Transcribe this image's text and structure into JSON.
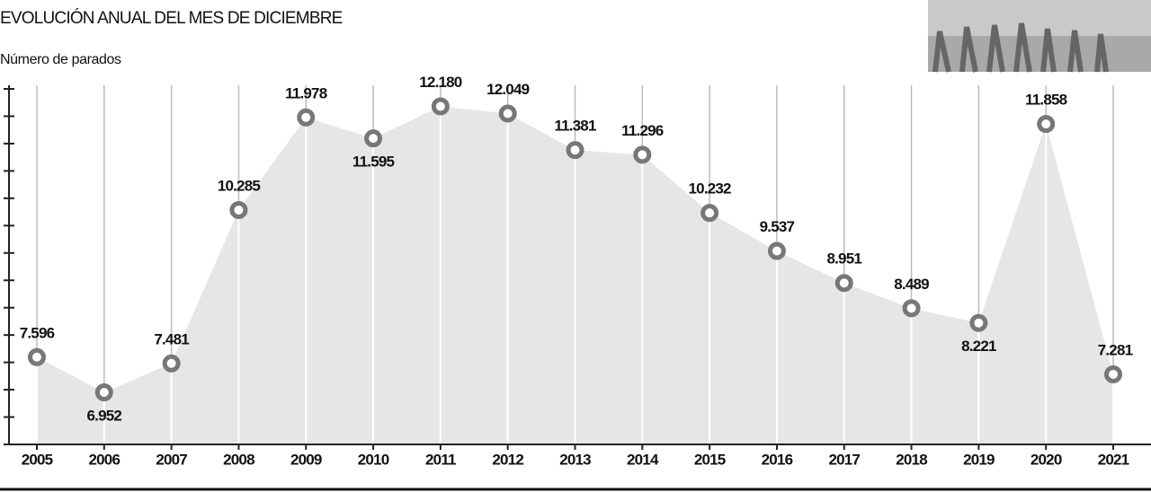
{
  "chart_data": {
    "type": "area",
    "title": "EVOLUCIÓN ANUAL DEL MES DE DICIEMBRE",
    "subtitle": "Número de parados",
    "categories": [
      "2005",
      "2006",
      "2007",
      "2008",
      "2009",
      "2010",
      "2011",
      "2012",
      "2013",
      "2014",
      "2015",
      "2016",
      "2017",
      "2018",
      "2019",
      "2020",
      "2021"
    ],
    "values": [
      7596,
      6952,
      7481,
      10285,
      11978,
      11595,
      12180,
      12049,
      11381,
      11296,
      10232,
      9537,
      8951,
      8489,
      8221,
      11858,
      7281
    ],
    "value_labels": [
      "7.596",
      "6.952",
      "7.481",
      "10.285",
      "11.978",
      "11.595",
      "12.180",
      "12.049",
      "11.381",
      "11.296",
      "10.232",
      "9.537",
      "8.951",
      "8.489",
      "8.221",
      "11.858",
      "7.281"
    ],
    "color": "#e6e6e6",
    "marker_color": "#777777",
    "ylim": [
      6000,
      12500
    ],
    "yticks": [
      6000,
      6500,
      7000,
      7500,
      8000,
      8500,
      9000,
      9500,
      10000,
      10500,
      11000,
      11500,
      12000,
      12500
    ],
    "grid": true
  }
}
